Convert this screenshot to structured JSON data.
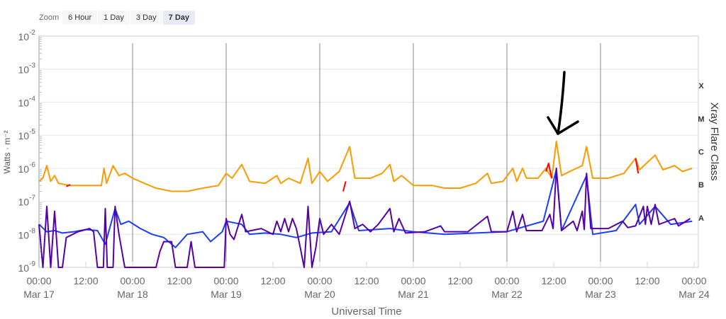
{
  "zoom": {
    "label": "Zoom",
    "buttons": [
      "6 Hour",
      "1 Day",
      "3 Day",
      "7 Day"
    ],
    "active": "7 Day"
  },
  "chart_data": {
    "type": "line",
    "xlabel": "Universal Time",
    "ylabel": "Watts · m⁻²",
    "y_scale": "log",
    "ylim": [
      1e-09,
      0.01
    ],
    "y_ticks": [
      "10-9",
      "10-8",
      "10-7",
      "10-6",
      "10-5",
      "10-4",
      "10-3",
      "10-2"
    ],
    "x_ticks": [
      [
        "00:00",
        "Mar 17"
      ],
      [
        "12:00",
        ""
      ],
      [
        "00:00",
        "Mar 18"
      ],
      [
        "12:00",
        ""
      ],
      [
        "00:00",
        "Mar 19"
      ],
      [
        "12:00",
        ""
      ],
      [
        "00:00",
        "Mar 20"
      ],
      [
        "12:00",
        ""
      ],
      [
        "00:00",
        "Mar 21"
      ],
      [
        "12:00",
        ""
      ],
      [
        "00:00",
        "Mar 22"
      ],
      [
        "12:00",
        ""
      ],
      [
        "00:00",
        "Mar 23"
      ],
      [
        "12:00",
        ""
      ],
      [
        "00:00",
        "Mar 24"
      ]
    ],
    "right_axis": {
      "title": "Xray Flare Class",
      "classes": [
        "A",
        "B",
        "C",
        "M",
        "X"
      ]
    },
    "colors": {
      "long": "#ff9900",
      "long_alt": "#ff0000",
      "short": "#1a3dff",
      "short_alt": "#5500aa",
      "annotation": "#000000"
    },
    "series": [
      {
        "key": "long",
        "values": [
          [
            "Mar 17 00:00",
            4e-07
          ],
          [
            "Mar 17 01:00",
            5e-07
          ],
          [
            "Mar 17 02:00",
            1.2e-06
          ],
          [
            "Mar 17 03:00",
            4e-07
          ],
          [
            "Mar 17 04:00",
            6e-07
          ],
          [
            "Mar 17 05:00",
            3.5e-07
          ],
          [
            "Mar 17 08:00",
            3e-07
          ],
          [
            "Mar 17 12:00",
            3e-07
          ],
          [
            "Mar 17 16:00",
            3e-07
          ],
          [
            "Mar 17 16:40",
            1e-06
          ],
          [
            "Mar 17 17:20",
            3.5e-07
          ],
          [
            "Mar 17 19:00",
            1.2e-06
          ],
          [
            "Mar 17 20:30",
            6e-07
          ],
          [
            "Mar 17 22:00",
            7e-07
          ],
          [
            "Mar 18 00:00",
            5e-07
          ],
          [
            "Mar 18 03:00",
            3.5e-07
          ],
          [
            "Mar 18 06:00",
            2.5e-07
          ],
          [
            "Mar 18 10:00",
            2e-07
          ],
          [
            "Mar 18 14:00",
            2e-07
          ],
          [
            "Mar 18 18:00",
            2.5e-07
          ],
          [
            "Mar 18 22:00",
            3e-07
          ],
          [
            "Mar 19 00:00",
            7e-07
          ],
          [
            "Mar 19 01:30",
            5e-07
          ],
          [
            "Mar 19 04:00",
            1.3e-06
          ],
          [
            "Mar 19 06:00",
            4e-07
          ],
          [
            "Mar 19 10:00",
            3.5e-07
          ],
          [
            "Mar 19 13:00",
            6e-07
          ],
          [
            "Mar 19 14:00",
            3.5e-07
          ],
          [
            "Mar 19 16:00",
            5e-07
          ],
          [
            "Mar 19 19:00",
            3.5e-07
          ],
          [
            "Mar 19 21:00",
            2e-06
          ],
          [
            "Mar 19 22:00",
            3.5e-07
          ],
          [
            "Mar 20 00:00",
            8e-07
          ],
          [
            "Mar 20 02:00",
            4e-07
          ],
          [
            "Mar 20 05:00",
            8e-07
          ],
          [
            "Mar 20 07:40",
            4.5e-06
          ],
          [
            "Mar 20 09:00",
            5e-07
          ],
          [
            "Mar 20 13:00",
            5e-07
          ],
          [
            "Mar 20 16:00",
            7e-07
          ],
          [
            "Mar 20 18:00",
            1.3e-06
          ],
          [
            "Mar 20 19:00",
            4e-07
          ],
          [
            "Mar 20 21:00",
            6e-07
          ],
          [
            "Mar 21 00:00",
            3e-07
          ],
          [
            "Mar 21 05:00",
            3e-07
          ],
          [
            "Mar 21 08:00",
            2.5e-07
          ],
          [
            "Mar 21 12:00",
            2.5e-07
          ],
          [
            "Mar 21 16:00",
            3.5e-07
          ],
          [
            "Mar 21 19:00",
            7e-07
          ],
          [
            "Mar 21 20:00",
            3.5e-07
          ],
          [
            "Mar 21 23:00",
            4e-07
          ],
          [
            "Mar 22 01:30",
            1e-06
          ],
          [
            "Mar 22 02:30",
            4e-07
          ],
          [
            "Mar 22 04:00",
            1e-06
          ],
          [
            "Mar 22 05:00",
            5e-07
          ],
          [
            "Mar 22 08:00",
            5e-07
          ],
          [
            "Mar 22 10:00",
            1e-06
          ],
          [
            "Mar 22 11:30",
            5e-07
          ],
          [
            "Mar 22 12:40",
            6.5e-06
          ],
          [
            "Mar 22 14:00",
            6e-07
          ],
          [
            "Mar 22 17:00",
            9e-07
          ],
          [
            "Mar 22 19:20",
            1.2e-06
          ],
          [
            "Mar 22 20:25",
            4.5e-06
          ],
          [
            "Mar 22 22:00",
            5e-07
          ],
          [
            "Mar 23 02:00",
            5e-07
          ],
          [
            "Mar 23 06:00",
            7e-07
          ],
          [
            "Mar 23 09:00",
            2e-06
          ],
          [
            "Mar 23 10:00",
            9e-07
          ],
          [
            "Mar 23 12:00",
            1.5e-06
          ],
          [
            "Mar 23 14:00",
            2.5e-06
          ],
          [
            "Mar 23 16:00",
            9e-07
          ],
          [
            "Mar 23 19:00",
            1.2e-06
          ],
          [
            "Mar 23 21:00",
            8e-07
          ],
          [
            "Mar 23 23:30",
            1e-06
          ]
        ]
      },
      {
        "key": "long_alt",
        "segments": [
          [
            [
              "Mar 17 07:00",
              2.8e-07
            ],
            [
              "Mar 17 08:00",
              3.2e-07
            ]
          ],
          [
            [
              "Mar 20 06:00",
              2e-07
            ],
            [
              "Mar 20 06:40",
              4e-07
            ]
          ],
          [
            [
              "Mar 22 10:00",
              8e-07
            ],
            [
              "Mar 22 10:40",
              1.4e-06
            ],
            [
              "Mar 22 11:30",
              5e-07
            ]
          ],
          [
            [
              "Mar 23 09:00",
              2e-06
            ],
            [
              "Mar 23 09:40",
              7e-07
            ]
          ]
        ]
      },
      {
        "key": "short",
        "values": [
          [
            "Mar 17 00:00",
            2e-08
          ],
          [
            "Mar 17 02:00",
            1.2e-08
          ],
          [
            "Mar 17 04:00",
            1.3e-08
          ],
          [
            "Mar 17 06:00",
            1.1e-08
          ],
          [
            "Mar 17 09:00",
            1.2e-08
          ],
          [
            "Mar 17 12:00",
            1.4e-08
          ],
          [
            "Mar 17 15:00",
            1.3e-08
          ],
          [
            "Mar 17 17:00",
            5e-09
          ],
          [
            "Mar 17 19:30",
            6e-08
          ],
          [
            "Mar 17 21:00",
            2e-08
          ],
          [
            "Mar 17 23:00",
            2.5e-08
          ],
          [
            "Mar 18 02:00",
            1.5e-08
          ],
          [
            "Mar 18 05:00",
            1e-08
          ],
          [
            "Mar 18 08:00",
            8e-09
          ],
          [
            "Mar 18 11:00",
            4e-09
          ],
          [
            "Mar 18 14:00",
            1e-08
          ],
          [
            "Mar 18 18:00",
            1.2e-08
          ],
          [
            "Mar 18 20:00",
            6e-09
          ],
          [
            "Mar 18 23:00",
            1.2e-08
          ],
          [
            "Mar 19 00:00",
            2.5e-08
          ],
          [
            "Mar 19 04:00",
            2e-08
          ],
          [
            "Mar 19 06:00",
            1e-08
          ],
          [
            "Mar 19 10:00",
            1.1e-08
          ],
          [
            "Mar 19 14:00",
            1e-08
          ],
          [
            "Mar 19 18:00",
            8e-09
          ],
          [
            "Mar 19 22:00",
            1.1e-08
          ],
          [
            "Mar 20 03:00",
            1.2e-08
          ],
          [
            "Mar 20 07:40",
            9e-08
          ],
          [
            "Mar 20 10:00",
            1.3e-08
          ],
          [
            "Mar 20 18:00",
            1.5e-08
          ],
          [
            "Mar 21 00:00",
            1.2e-08
          ],
          [
            "Mar 21 08:00",
            1e-08
          ],
          [
            "Mar 21 16:00",
            1.1e-08
          ],
          [
            "Mar 22 00:00",
            1.2e-08
          ],
          [
            "Mar 22 09:20",
            2.5e-08
          ],
          [
            "Mar 22 12:40",
            9e-07
          ],
          [
            "Mar 22 14:00",
            1.3e-08
          ],
          [
            "Mar 22 20:25",
            6e-07
          ],
          [
            "Mar 22 22:00",
            1e-08
          ],
          [
            "Mar 23 04:00",
            1.3e-08
          ],
          [
            "Mar 23 09:00",
            8e-08
          ],
          [
            "Mar 23 10:00",
            2e-08
          ],
          [
            "Mar 23 14:00",
            7e-08
          ],
          [
            "Mar 23 18:00",
            2e-08
          ],
          [
            "Mar 23 23:30",
            2.5e-08
          ]
        ]
      },
      {
        "key": "short_alt",
        "values": [
          [
            "Mar 17 00:00",
            2e-08
          ],
          [
            "Mar 17 01:00",
            1e-09
          ],
          [
            "Mar 17 02:00",
            7e-08
          ],
          [
            "Mar 17 03:00",
            1e-09
          ],
          [
            "Mar 17 04:00",
            5e-08
          ],
          [
            "Mar 17 05:00",
            1e-09
          ],
          [
            "Mar 17 06:00",
            1e-09
          ],
          [
            "Mar 17 07:00",
            8e-09
          ],
          [
            "Mar 17 10:00",
            1.2e-08
          ],
          [
            "Mar 17 13:00",
            1.5e-08
          ],
          [
            "Mar 17 14:00",
            1.2e-08
          ],
          [
            "Mar 17 15:00",
            1e-09
          ],
          [
            "Mar 17 16:30",
            1e-09
          ],
          [
            "Mar 17 17:00",
            6e-08
          ],
          [
            "Mar 17 17:30",
            1e-09
          ],
          [
            "Mar 17 19:00",
            1e-09
          ],
          [
            "Mar 17 19:30",
            7e-08
          ],
          [
            "Mar 17 20:30",
            1e-08
          ],
          [
            "Mar 17 22:00",
            1e-09
          ],
          [
            "Mar 18 06:00",
            1e-09
          ],
          [
            "Mar 18 07:00",
            3e-09
          ],
          [
            "Mar 18 08:00",
            6e-09
          ],
          [
            "Mar 18 10:00",
            6e-09
          ],
          [
            "Mar 18 11:00",
            1e-09
          ],
          [
            "Mar 18 14:00",
            1e-09
          ],
          [
            "Mar 18 15:00",
            6e-09
          ],
          [
            "Mar 18 16:00",
            1e-09
          ],
          [
            "Mar 18 23:30",
            1e-09
          ],
          [
            "Mar 19 00:00",
            3e-08
          ],
          [
            "Mar 19 01:00",
            1e-08
          ],
          [
            "Mar 19 02:00",
            7e-09
          ],
          [
            "Mar 19 04:00",
            4e-08
          ],
          [
            "Mar 19 05:00",
            1.2e-08
          ],
          [
            "Mar 19 09:00",
            1.5e-08
          ],
          [
            "Mar 19 12:00",
            1e-08
          ],
          [
            "Mar 19 13:00",
            2.5e-08
          ],
          [
            "Mar 19 14:00",
            1.2e-08
          ],
          [
            "Mar 19 15:00",
            3e-08
          ],
          [
            "Mar 19 16:00",
            1.2e-08
          ],
          [
            "Mar 19 17:00",
            3e-08
          ],
          [
            "Mar 19 18:00",
            1.5e-08
          ],
          [
            "Mar 19 19:00",
            4e-09
          ],
          [
            "Mar 19 20:00",
            1e-09
          ],
          [
            "Mar 19 21:00",
            7e-08
          ],
          [
            "Mar 19 22:00",
            1e-09
          ],
          [
            "Mar 19 23:00",
            4e-09
          ],
          [
            "Mar 20 00:00",
            3e-08
          ],
          [
            "Mar 20 01:00",
            1e-08
          ],
          [
            "Mar 20 03:00",
            2e-08
          ],
          [
            "Mar 20 05:00",
            1e-08
          ],
          [
            "Mar 20 07:40",
            1e-07
          ],
          [
            "Mar 20 09:00",
            1.5e-08
          ],
          [
            "Mar 20 11:00",
            2e-08
          ],
          [
            "Mar 20 13:00",
            1.2e-08
          ],
          [
            "Mar 20 15:00",
            2e-08
          ],
          [
            "Mar 20 18:00",
            6e-08
          ],
          [
            "Mar 20 19:00",
            1.2e-08
          ],
          [
            "Mar 20 20:20",
            3e-08
          ],
          [
            "Mar 20 22:00",
            1.1e-08
          ],
          [
            "Mar 21 03:00",
            1.2e-08
          ],
          [
            "Mar 21 07:00",
            1.8e-08
          ],
          [
            "Mar 21 08:00",
            1.2e-08
          ],
          [
            "Mar 21 14:00",
            1.2e-08
          ],
          [
            "Mar 21 19:00",
            3.5e-08
          ],
          [
            "Mar 21 20:00",
            1.2e-08
          ],
          [
            "Mar 22 00:00",
            1.2e-08
          ],
          [
            "Mar 22 01:30",
            5e-08
          ],
          [
            "Mar 22 02:30",
            1.2e-08
          ],
          [
            "Mar 22 04:00",
            4e-08
          ],
          [
            "Mar 22 05:00",
            1.3e-08
          ],
          [
            "Mar 22 09:00",
            1.3e-08
          ],
          [
            "Mar 22 11:00",
            4e-08
          ],
          [
            "Mar 22 11:50",
            1.5e-08
          ],
          [
            "Mar 22 12:40",
            1e-06
          ],
          [
            "Mar 22 14:00",
            1.3e-08
          ],
          [
            "Mar 22 17:00",
            2.5e-08
          ],
          [
            "Mar 22 18:00",
            1.3e-08
          ],
          [
            "Mar 22 19:20",
            5e-08
          ],
          [
            "Mar 22 19:50",
            1.4e-08
          ],
          [
            "Mar 22 20:25",
            7e-07
          ],
          [
            "Mar 22 21:30",
            1.5e-08
          ],
          [
            "Mar 23 02:00",
            1.5e-08
          ],
          [
            "Mar 23 05:40",
            2.5e-08
          ],
          [
            "Mar 23 07:00",
            1.6e-08
          ],
          [
            "Mar 23 09:00",
            1.8e-08
          ],
          [
            "Mar 23 11:00",
            7e-08
          ],
          [
            "Mar 23 11:30",
            2e-08
          ],
          [
            "Mar 23 12:00",
            7e-08
          ],
          [
            "Mar 23 13:00",
            2e-08
          ],
          [
            "Mar 23 14:00",
            8e-08
          ],
          [
            "Mar 23 15:00",
            2e-08
          ],
          [
            "Mar 23 19:00",
            3e-08
          ],
          [
            "Mar 23 20:00",
            1.8e-08
          ],
          [
            "Mar 23 23:00",
            3e-08
          ]
        ]
      }
    ]
  }
}
